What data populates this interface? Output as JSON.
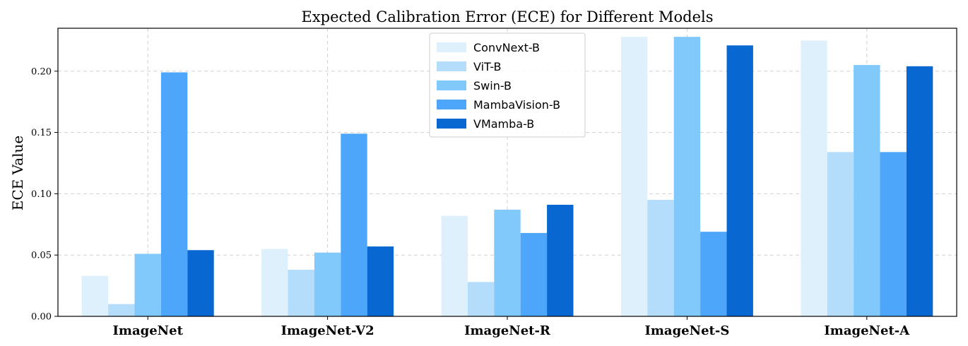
{
  "chart_data": {
    "type": "bar",
    "title": "Expected Calibration Error (ECE) for Different Models",
    "xlabel": "",
    "ylabel": "ECE Value",
    "ylim": [
      0,
      0.235
    ],
    "yticks": [
      "0.00",
      "0.05",
      "0.10",
      "0.15",
      "0.20"
    ],
    "grid": true,
    "legend_position": "top-center",
    "categories": [
      "ImageNet",
      "ImageNet-V2",
      "ImageNet-R",
      "ImageNet-S",
      "ImageNet-A"
    ],
    "series": [
      {
        "name": "ConvNext-B",
        "color": "#dff0fd",
        "values": [
          0.033,
          0.055,
          0.082,
          0.228,
          0.225
        ]
      },
      {
        "name": "ViT-B",
        "color": "#b4dcfb",
        "values": [
          0.01,
          0.038,
          0.028,
          0.095,
          0.134
        ]
      },
      {
        "name": "Swin-B",
        "color": "#82c9fb",
        "values": [
          0.051,
          0.052,
          0.087,
          0.228,
          0.205
        ]
      },
      {
        "name": "MambaVision-B",
        "color": "#4ea6fa",
        "values": [
          0.199,
          0.149,
          0.068,
          0.069,
          0.134
        ]
      },
      {
        "name": "VMamba-B",
        "color": "#0867d1",
        "values": [
          0.054,
          0.057,
          0.091,
          0.221,
          0.204
        ]
      }
    ]
  }
}
